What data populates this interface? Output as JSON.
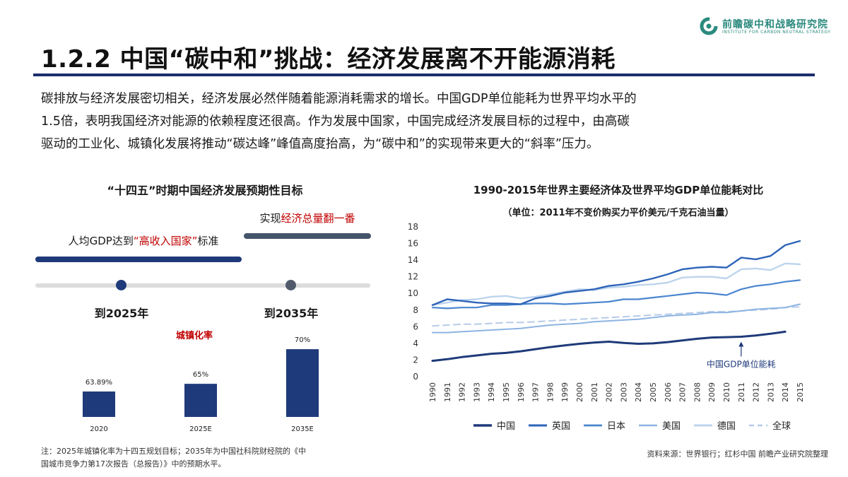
{
  "logo": {
    "name": "前瞻碳中和战略研究院",
    "english": "INSTITUTE FOR CARBON NEUTRAL STRATEGY",
    "color": "#2b8a7e"
  },
  "header": {
    "title": "1.2.2 中国“碳中和”挑战：经济发展离不开能源消耗",
    "rule_color": "#1c2f6b"
  },
  "intro": {
    "lines": [
      "碳排放与经济发展密切相关，经济发展必然伴随着能源消耗需求的增长。中国GDP单位能耗为世界平均水平的",
      "1.5倍，表明我国经济对能源的依赖程度还很高。作为发展中国家，中国完成经济发展目标的过程中，由高碳",
      "驱动的工业化、城镇化发展将推动“碳达峰”峰值高度抬高，为“碳中和”的实现带来更大的“斜率”压力。"
    ]
  },
  "left_panel": {
    "title": "“十四五”时期中国经济发展预期性目标",
    "goal_a": {
      "prefix": "人均GDP达到",
      "highlight": "“高收入国家”",
      "suffix": "标准"
    },
    "goal_b": {
      "prefix": "实现",
      "highlight": "经济总量翻一番"
    },
    "milestones": [
      "到2025年",
      "到2035年"
    ],
    "urbanization_title": "城镇化率",
    "colors": {
      "bar": "#1f3a7a",
      "highlight": "#c00000",
      "goal_b_bar": "#44546a"
    }
  },
  "right_panel": {
    "title": "1990-2015年世界主要经济体及世界平均GDP单位能耗对比",
    "subtitle": "（单位：2011年不变价购买力平价美元/千克石油当量）"
  },
  "footer": {
    "note_lines": [
      "注：2025年城镇化率为十四五规划目标；2035年为中国社科院财经院的《中",
      "国城市竞争力第17次报告（总报告）》中的预期水平。"
    ],
    "source": "资料来源：世界银行；红杉中国 前瞻产业研究院整理"
  },
  "chart_data": [
    {
      "type": "bar",
      "title": "城镇化率",
      "categories": [
        "2020",
        "2025E",
        "2035E"
      ],
      "values": [
        63.89,
        65,
        70
      ],
      "labels": [
        "63.89%",
        "65%",
        "70%"
      ],
      "color": "#1f3a7a"
    },
    {
      "type": "line",
      "title": "1990-2015年世界主要经济体及世界平均GDP单位能耗对比",
      "subtitle": "（单位：2011年不变价购买力平价美元/千克石油当量）",
      "x": [
        "1990",
        "1991",
        "1992",
        "1993",
        "1994",
        "1995",
        "1996",
        "1997",
        "1998",
        "1999",
        "2000",
        "2001",
        "2002",
        "2003",
        "2004",
        "2005",
        "2006",
        "2007",
        "2008",
        "2009",
        "2010",
        "2011",
        "2012",
        "2013",
        "2014",
        "2015"
      ],
      "ylim": [
        0,
        18
      ],
      "yticks": [
        0,
        2,
        4,
        6,
        8,
        10,
        12,
        14,
        16,
        18
      ],
      "grid": false,
      "legend_position": "bottom",
      "annotation": "中国GDP单位能耗",
      "series": [
        {
          "name": "中国",
          "color": "#1f3a7a",
          "width": 3,
          "dash": false,
          "values": [
            1.9,
            2.1,
            2.35,
            2.55,
            2.75,
            2.85,
            3.05,
            3.3,
            3.55,
            3.75,
            3.95,
            4.1,
            4.2,
            4.05,
            3.95,
            4.0,
            4.15,
            4.35,
            4.55,
            4.7,
            4.75,
            4.8,
            4.95,
            5.15,
            5.4,
            null
          ]
        },
        {
          "name": "英国",
          "color": "#2e64b8",
          "width": 2.4,
          "dash": false,
          "values": [
            8.6,
            9.3,
            9.1,
            8.9,
            8.8,
            8.8,
            8.7,
            9.4,
            9.7,
            10.1,
            10.3,
            10.5,
            10.9,
            11.1,
            11.4,
            11.8,
            12.3,
            12.9,
            13.1,
            13.2,
            13.1,
            14.3,
            14.1,
            14.5,
            15.8,
            16.3
          ]
        },
        {
          "name": "日本",
          "color": "#4a86cf",
          "width": 2.2,
          "dash": false,
          "values": [
            8.3,
            8.2,
            8.3,
            8.3,
            8.6,
            8.6,
            8.7,
            8.8,
            8.8,
            8.7,
            8.8,
            8.9,
            9.0,
            9.3,
            9.3,
            9.5,
            9.7,
            9.9,
            10.1,
            10.0,
            9.8,
            10.5,
            10.9,
            11.1,
            11.4,
            11.6
          ]
        },
        {
          "name": "美国",
          "color": "#8db4e2",
          "width": 2,
          "dash": false,
          "values": [
            5.3,
            5.3,
            5.4,
            5.5,
            5.6,
            5.7,
            5.8,
            6.0,
            6.2,
            6.3,
            6.4,
            6.6,
            6.7,
            6.8,
            6.9,
            7.1,
            7.3,
            7.4,
            7.5,
            7.7,
            7.7,
            7.9,
            8.1,
            8.2,
            8.3,
            8.7
          ]
        },
        {
          "name": "德国",
          "color": "#bdd4ee",
          "width": 2.4,
          "dash": false,
          "values": [
            8.6,
            8.9,
            9.2,
            9.3,
            9.6,
            9.7,
            9.4,
            9.6,
            9.9,
            10.2,
            10.5,
            10.4,
            10.7,
            10.8,
            11.0,
            11.1,
            11.3,
            11.9,
            12.0,
            12.0,
            11.8,
            12.9,
            13.0,
            12.8,
            13.6,
            13.5
          ]
        },
        {
          "name": "全球",
          "color": "#b7cbe8",
          "width": 2,
          "dash": true,
          "values": [
            6.1,
            6.2,
            6.3,
            6.3,
            6.4,
            6.5,
            6.5,
            6.6,
            6.7,
            6.8,
            6.9,
            7.0,
            7.1,
            7.2,
            7.3,
            7.4,
            7.5,
            7.6,
            7.7,
            7.8,
            7.8,
            7.9,
            8.0,
            8.1,
            8.3,
            8.4
          ]
        }
      ]
    }
  ]
}
